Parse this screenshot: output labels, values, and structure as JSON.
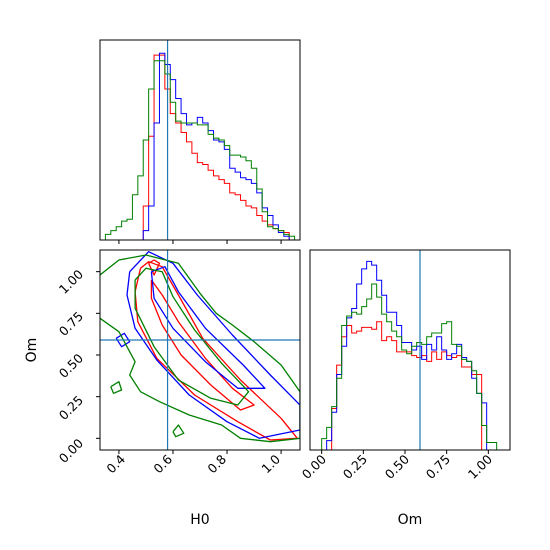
{
  "chart_data": [
    {
      "type": "histogram",
      "panel": "H0-marginal",
      "xlim": [
        0.33,
        1.07
      ],
      "x_ticks": [
        0.4,
        0.6,
        0.8,
        1.0
      ],
      "truth": 0.58,
      "bins": [
        0.33,
        0.35,
        0.37,
        0.39,
        0.41,
        0.43,
        0.45,
        0.47,
        0.49,
        0.51,
        0.53,
        0.55,
        0.57,
        0.59,
        0.61,
        0.63,
        0.65,
        0.67,
        0.69,
        0.71,
        0.73,
        0.75,
        0.77,
        0.79,
        0.81,
        0.83,
        0.85,
        0.87,
        0.89,
        0.91,
        0.93,
        0.95,
        0.97,
        0.99,
        1.01,
        1.03,
        1.05,
        1.07
      ],
      "series": [
        {
          "color": "#ff0000",
          "counts": [
            0,
            0,
            0,
            0,
            0,
            0,
            0,
            0,
            0.18,
            0.55,
            0.98,
            0.98,
            0.8,
            0.67,
            0.62,
            0.57,
            0.52,
            0.46,
            0.41,
            0.4,
            0.37,
            0.34,
            0.32,
            0.3,
            0.25,
            0.24,
            0.21,
            0.18,
            0.17,
            0.13,
            0.1,
            0.08,
            0.06,
            0.05,
            0.04,
            0,
            0
          ]
        },
        {
          "color": "#0000ff",
          "counts": [
            0,
            0,
            0,
            0,
            0,
            0,
            0,
            0,
            0.05,
            0.18,
            0.62,
            0.99,
            0.93,
            0.85,
            0.75,
            0.67,
            0.61,
            0.62,
            0.65,
            0.62,
            0.58,
            0.53,
            0.52,
            0.48,
            0.38,
            0.36,
            0.33,
            0.32,
            0.3,
            0.25,
            0.17,
            0.13,
            0.08,
            0.04,
            0.02,
            0,
            0
          ]
        },
        {
          "color": "#008000",
          "counts": [
            0,
            0.03,
            0.05,
            0.07,
            0.1,
            0.11,
            0.24,
            0.34,
            0.53,
            0.8,
            0.95,
            0.95,
            0.88,
            0.73,
            0.63,
            0.62,
            0.62,
            0.62,
            0.61,
            0.61,
            0.56,
            0.54,
            0.53,
            0.5,
            0.45,
            0.45,
            0.44,
            0.42,
            0.38,
            0.27,
            0.15,
            0.07,
            0.06,
            0.05,
            0.03,
            0.02,
            0
          ]
        }
      ]
    },
    {
      "type": "contour",
      "panel": "H0-Om-joint",
      "xlim": [
        0.33,
        1.07
      ],
      "ylim": [
        -0.07,
        1.13
      ],
      "x_ticks": [
        0.4,
        0.6,
        0.8,
        1.0
      ],
      "y_ticks": [
        0.0,
        0.25,
        0.5,
        0.75,
        1.0
      ],
      "truth": {
        "x": 0.58,
        "y": 0.59
      },
      "series": [
        {
          "color": "#ff0000",
          "contours": [
            [
              [
                0.48,
                1.02
              ],
              [
                0.51,
                1.06
              ],
              [
                0.56,
                1.03
              ],
              [
                0.62,
                0.86
              ],
              [
                0.71,
                0.6
              ],
              [
                0.85,
                0.35
              ],
              [
                1.0,
                0.12
              ],
              [
                1.06,
                0.0
              ],
              [
                0.96,
                -0.01
              ],
              [
                0.84,
                0.1
              ],
              [
                0.68,
                0.26
              ],
              [
                0.54,
                0.48
              ],
              [
                0.47,
                0.7
              ],
              [
                0.46,
                0.88
              ],
              [
                0.48,
                1.02
              ]
            ],
            [
              [
                0.52,
                0.95
              ],
              [
                0.56,
                0.86
              ],
              [
                0.62,
                0.7
              ],
              [
                0.72,
                0.48
              ],
              [
                0.82,
                0.3
              ],
              [
                0.9,
                0.2
              ],
              [
                0.85,
                0.17
              ],
              [
                0.74,
                0.32
              ],
              [
                0.63,
                0.5
              ],
              [
                0.56,
                0.68
              ],
              [
                0.52,
                0.84
              ],
              [
                0.52,
                0.95
              ]
            ],
            [
              [
                0.51,
                1.05
              ],
              [
                0.53,
                1.07
              ],
              [
                0.55,
                1.05
              ],
              [
                0.53,
                0.98
              ],
              [
                0.51,
                1.05
              ]
            ]
          ]
        },
        {
          "color": "#0000ff",
          "contours": [
            [
              [
                0.44,
                1.0
              ],
              [
                0.51,
                1.12
              ],
              [
                0.6,
                1.05
              ],
              [
                0.69,
                0.86
              ],
              [
                0.82,
                0.62
              ],
              [
                0.96,
                0.38
              ],
              [
                1.07,
                0.2
              ],
              [
                1.07,
                0.05
              ],
              [
                0.92,
                0.0
              ],
              [
                0.8,
                0.1
              ],
              [
                0.66,
                0.26
              ],
              [
                0.54,
                0.47
              ],
              [
                0.46,
                0.66
              ],
              [
                0.43,
                0.86
              ],
              [
                0.44,
                1.0
              ]
            ],
            [
              [
                0.52,
                1.0
              ],
              [
                0.57,
                1.03
              ],
              [
                0.62,
                0.88
              ],
              [
                0.72,
                0.66
              ],
              [
                0.86,
                0.44
              ],
              [
                0.94,
                0.3
              ],
              [
                0.84,
                0.3
              ],
              [
                0.72,
                0.46
              ],
              [
                0.6,
                0.66
              ],
              [
                0.53,
                0.84
              ],
              [
                0.52,
                1.0
              ]
            ],
            [
              [
                0.39,
                0.6
              ],
              [
                0.42,
                0.63
              ],
              [
                0.44,
                0.58
              ],
              [
                0.41,
                0.55
              ],
              [
                0.39,
                0.6
              ]
            ]
          ]
        },
        {
          "color": "#008000",
          "contours": [
            [
              [
                0.33,
                0.98
              ],
              [
                0.4,
                1.07
              ],
              [
                0.5,
                1.1
              ],
              [
                0.62,
                1.05
              ],
              [
                0.7,
                0.87
              ],
              [
                0.76,
                0.75
              ],
              [
                0.82,
                0.68
              ],
              [
                0.9,
                0.58
              ],
              [
                1.0,
                0.44
              ],
              [
                1.07,
                0.28
              ],
              [
                1.07,
                0.0
              ],
              [
                0.96,
                -0.02
              ],
              [
                0.85,
                0.0
              ],
              [
                0.78,
                0.08
              ],
              [
                0.66,
                0.14
              ],
              [
                0.55,
                0.22
              ],
              [
                0.48,
                0.28
              ],
              [
                0.44,
                0.38
              ],
              [
                0.46,
                0.46
              ],
              [
                0.4,
                0.64
              ],
              [
                0.33,
                0.72
              ]
            ],
            [
              [
                0.46,
                0.95
              ],
              [
                0.5,
                1.02
              ],
              [
                0.56,
                1.0
              ],
              [
                0.6,
                0.85
              ],
              [
                0.68,
                0.65
              ],
              [
                0.78,
                0.45
              ],
              [
                0.88,
                0.28
              ],
              [
                0.84,
                0.2
              ],
              [
                0.74,
                0.24
              ],
              [
                0.62,
                0.35
              ],
              [
                0.53,
                0.55
              ],
              [
                0.46,
                0.78
              ],
              [
                0.46,
                0.95
              ]
            ],
            [
              [
                0.37,
                0.31
              ],
              [
                0.4,
                0.34
              ],
              [
                0.41,
                0.29
              ],
              [
                0.38,
                0.27
              ],
              [
                0.37,
                0.31
              ]
            ],
            [
              [
                0.6,
                0.04
              ],
              [
                0.62,
                0.08
              ],
              [
                0.64,
                0.03
              ],
              [
                0.61,
                0.01
              ],
              [
                0.6,
                0.04
              ]
            ]
          ]
        }
      ]
    },
    {
      "type": "histogram",
      "panel": "Om-marginal",
      "xlim": [
        -0.07,
        1.13
      ],
      "x_ticks": [
        0.0,
        0.25,
        0.5,
        0.75,
        1.0
      ],
      "truth": 0.59,
      "bins": [
        -0.03,
        0.0,
        0.03,
        0.06,
        0.09,
        0.12,
        0.15,
        0.18,
        0.21,
        0.24,
        0.27,
        0.3,
        0.33,
        0.36,
        0.39,
        0.42,
        0.45,
        0.48,
        0.51,
        0.54,
        0.57,
        0.6,
        0.63,
        0.66,
        0.69,
        0.72,
        0.75,
        0.78,
        0.81,
        0.84,
        0.87,
        0.9,
        0.93,
        0.96,
        0.99,
        1.02,
        1.05,
        1.08
      ],
      "series": [
        {
          "color": "#ff0000",
          "counts": [
            0,
            0,
            0,
            0.22,
            0.45,
            0.6,
            0.66,
            0.62,
            0.63,
            0.65,
            0.65,
            0.64,
            0.68,
            0.58,
            0.6,
            0.58,
            0.52,
            0.52,
            0.52,
            0.5,
            0.49,
            0.5,
            0.47,
            0.52,
            0.48,
            0.52,
            0.5,
            0.49,
            0.5,
            0.44,
            0.44,
            0.4,
            0.4,
            0.0,
            0,
            0,
            0
          ]
        },
        {
          "color": "#0000ff",
          "counts": [
            0,
            0,
            0.05,
            0.2,
            0.4,
            0.55,
            0.7,
            0.75,
            0.88,
            0.96,
            1.0,
            0.98,
            0.9,
            0.82,
            0.73,
            0.73,
            0.66,
            0.57,
            0.57,
            0.53,
            0.55,
            0.48,
            0.56,
            0.53,
            0.6,
            0.53,
            0.48,
            0.51,
            0.56,
            0.49,
            0.47,
            0.38,
            0.3,
            0.25,
            0,
            0,
            0
          ]
        },
        {
          "color": "#008000",
          "counts": [
            0,
            0.06,
            0.12,
            0.23,
            0.38,
            0.66,
            0.71,
            0.73,
            0.72,
            0.76,
            0.8,
            0.88,
            0.81,
            0.72,
            0.68,
            0.63,
            0.6,
            0.53,
            0.51,
            0.55,
            0.57,
            0.56,
            0.6,
            0.62,
            0.62,
            0.67,
            0.68,
            0.56,
            0.55,
            0.48,
            0.47,
            0.42,
            0.3,
            0.13,
            0.04,
            0.04,
            0
          ]
        }
      ]
    }
  ],
  "axes": {
    "h0_label": "H0",
    "om_label": "Om",
    "om_ylabel": "Om",
    "h0_ticks": [
      "0.4",
      "0.6",
      "0.8",
      "1.0"
    ],
    "om_ticks": [
      "0.00",
      "0.25",
      "0.50",
      "0.75",
      "1.00"
    ]
  },
  "colors": {
    "truth": "#1f77b4",
    "red": "#ff0000",
    "blue": "#0000ff",
    "green": "#008000"
  }
}
